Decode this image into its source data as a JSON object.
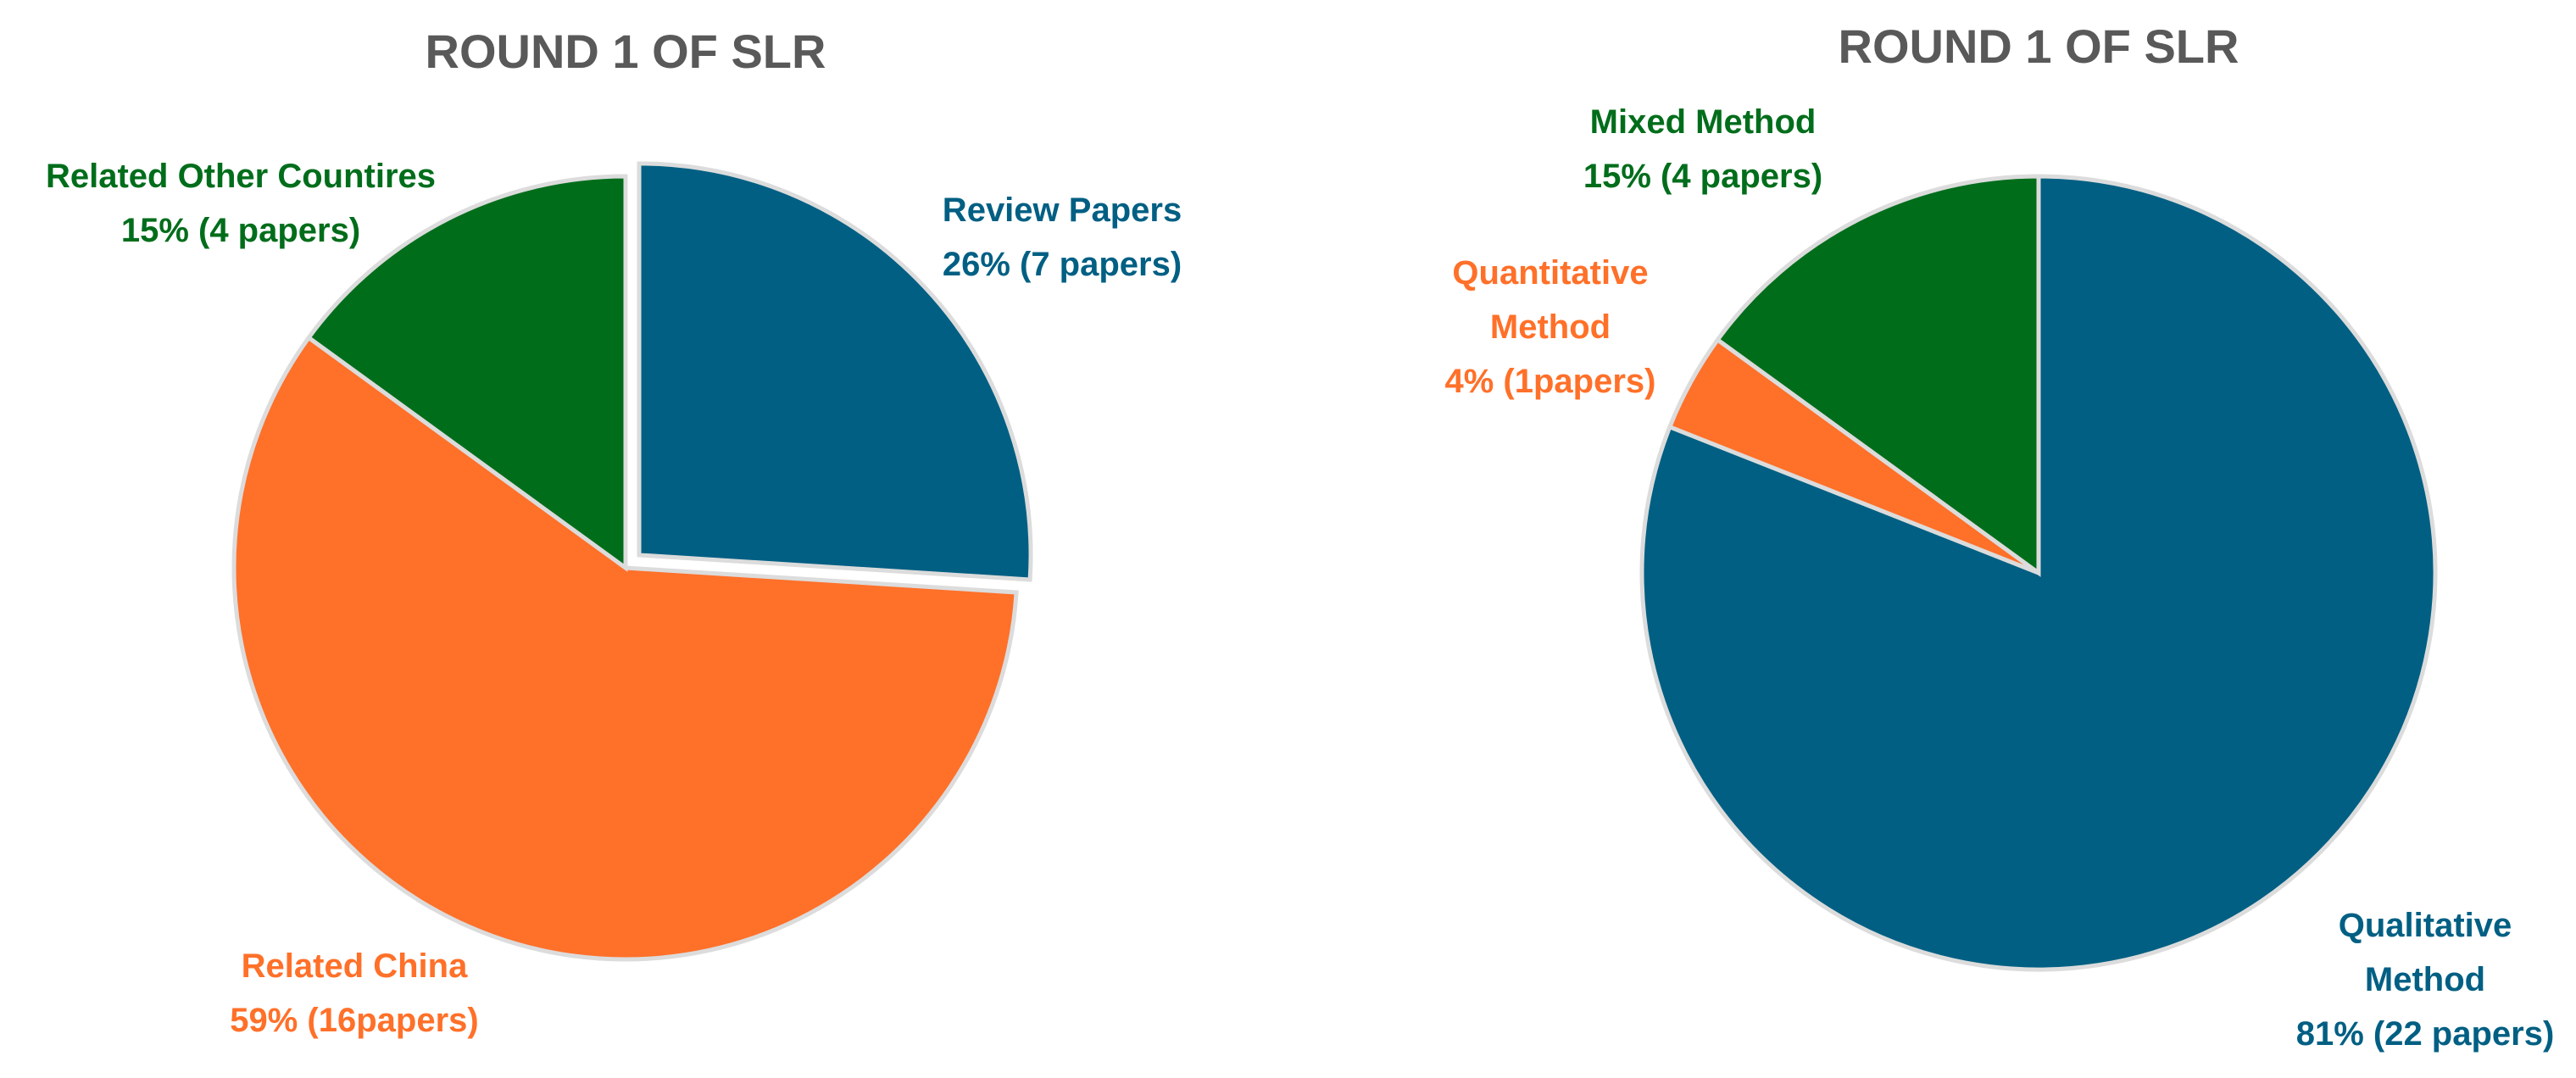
{
  "chart_data": [
    {
      "type": "pie",
      "title": "ROUND 1 OF SLR",
      "slices": [
        {
          "name": "Review Papers",
          "value": 26,
          "label_pct": "26% (7 papers)",
          "color": "#005F83"
        },
        {
          "name": "Related China",
          "value": 59,
          "label_pct": "59% (16papers)",
          "color": "#FF7029"
        },
        {
          "name": "Related Other Countires",
          "value": 15,
          "label_pct": "15% (4 papers)",
          "color": "#006D1B"
        }
      ]
    },
    {
      "type": "pie",
      "title": "ROUND 1 OF SLR",
      "slices": [
        {
          "name": "Qualitative Method",
          "value": 81,
          "label_pct": "81% (22 papers)",
          "color": "#005F83"
        },
        {
          "name": "Quantitative Method",
          "value": 4,
          "label_pct": "4% (1papers)",
          "color": "#FF7029"
        },
        {
          "name": "Mixed Method",
          "value": 15,
          "label_pct": "15% (4 papers)",
          "color": "#006D1B"
        }
      ]
    }
  ]
}
